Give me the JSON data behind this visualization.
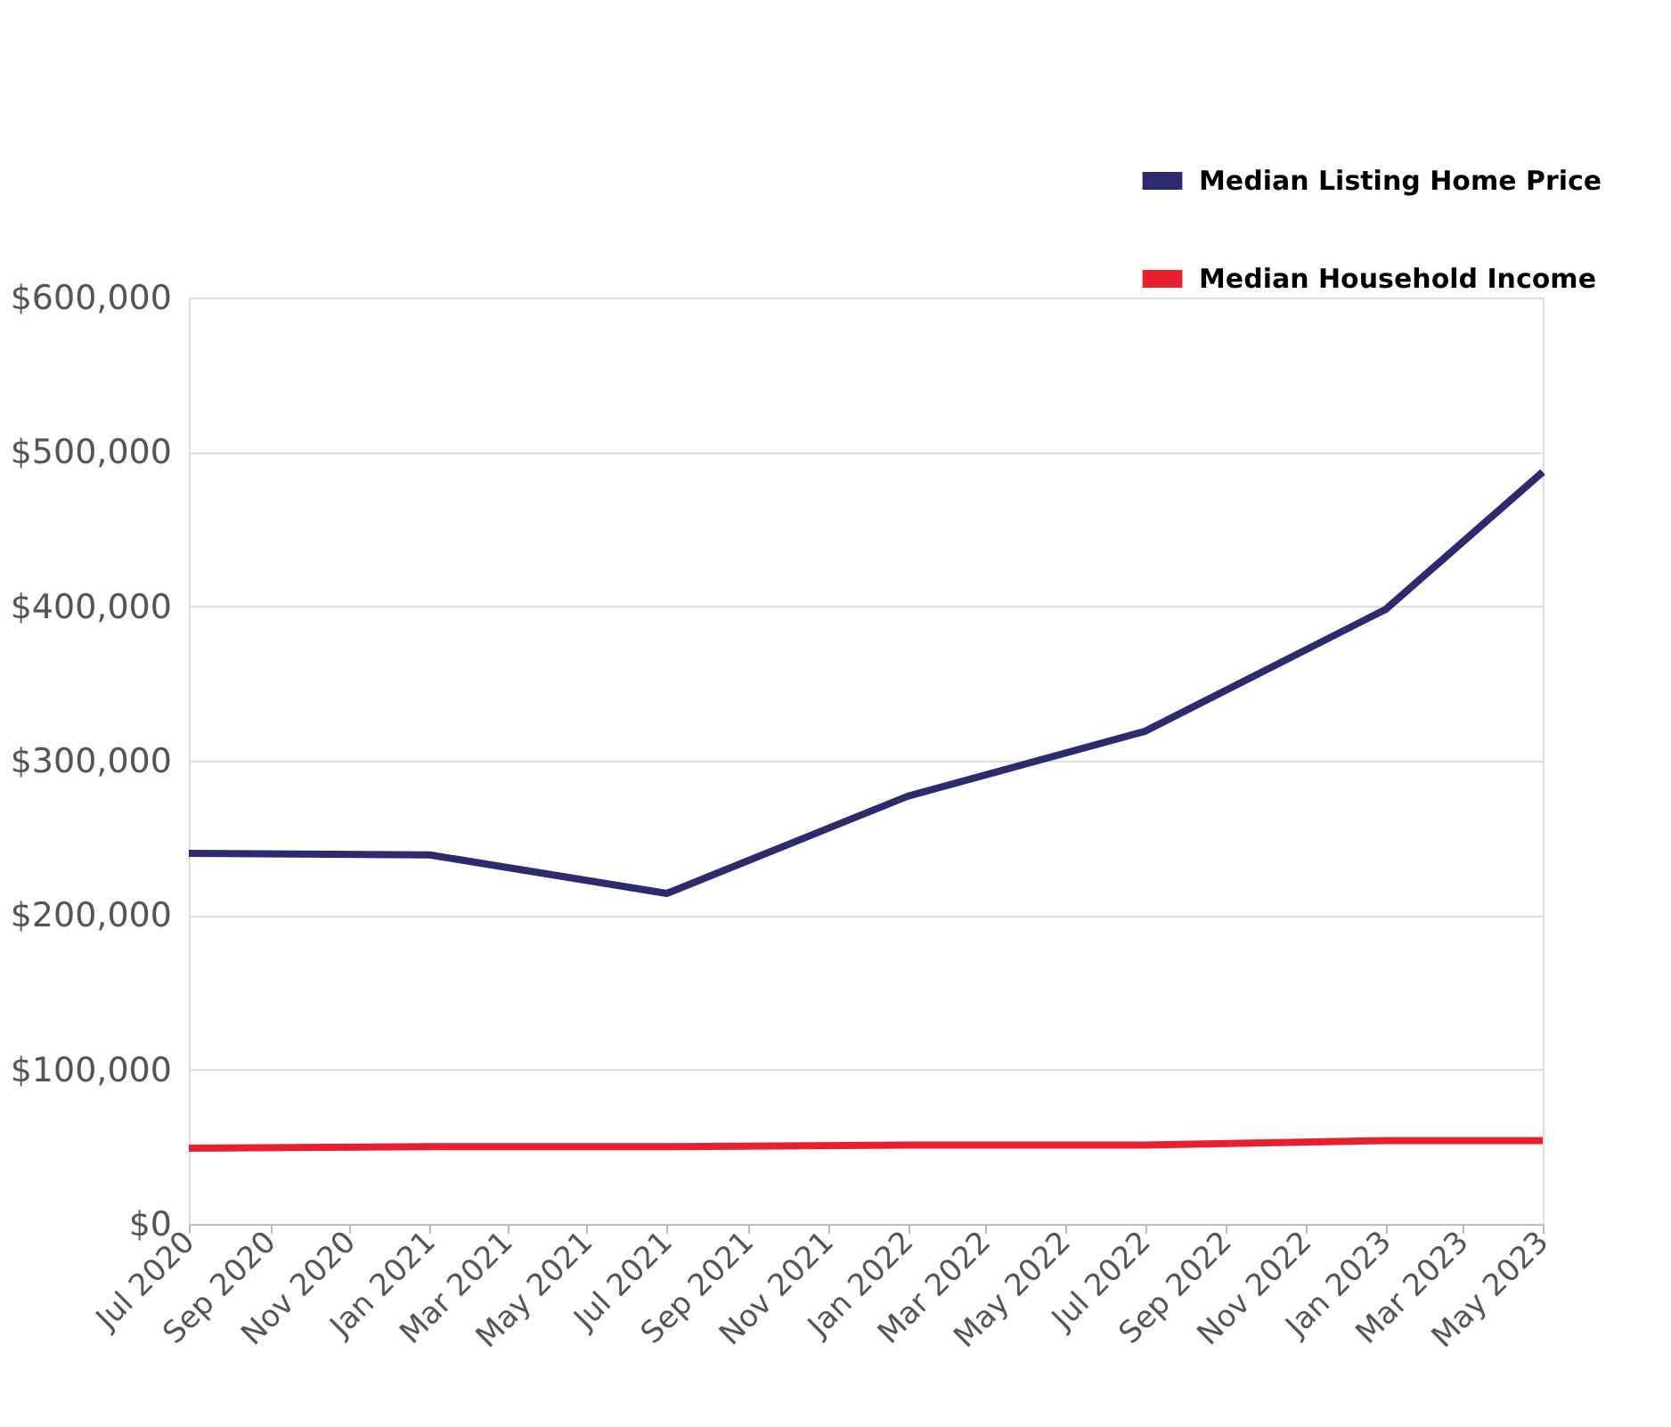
{
  "chart_data": {
    "type": "line",
    "x": [
      "2020-07",
      "2021-01",
      "2021-07",
      "2022-01",
      "2022-07",
      "2023-01",
      "2023-05"
    ],
    "series": [
      {
        "name": "Median Listing Home Price",
        "color": "#2e2a6e",
        "values": [
          240000,
          239000,
          214000,
          277000,
          319000,
          398000,
          487000
        ]
      },
      {
        "name": "Median Household Income",
        "color": "#e8202e",
        "values": [
          49000,
          50000,
          50000,
          51000,
          51000,
          54000,
          54000
        ]
      }
    ],
    "xlim": [
      "2020-07",
      "2023-05"
    ],
    "xticks": [
      {
        "value": "2020-07",
        "label": "Jul 2020"
      },
      {
        "value": "2020-09",
        "label": "Sep 2020"
      },
      {
        "value": "2020-11",
        "label": "Nov 2020"
      },
      {
        "value": "2021-01",
        "label": "Jan 2021"
      },
      {
        "value": "2021-03",
        "label": "Mar 2021"
      },
      {
        "value": "2021-05",
        "label": "May 2021"
      },
      {
        "value": "2021-07",
        "label": "Jul 2021"
      },
      {
        "value": "2021-09",
        "label": "Sep 2021"
      },
      {
        "value": "2021-11",
        "label": "Nov 2021"
      },
      {
        "value": "2022-01",
        "label": "Jan 2022"
      },
      {
        "value": "2022-03",
        "label": "Mar 2022"
      },
      {
        "value": "2022-05",
        "label": "May 2022"
      },
      {
        "value": "2022-07",
        "label": "Jul 2022"
      },
      {
        "value": "2022-09",
        "label": "Sep 2022"
      },
      {
        "value": "2022-11",
        "label": "Nov 2022"
      },
      {
        "value": "2023-01",
        "label": "Jan 2023"
      },
      {
        "value": "2023-03",
        "label": "Mar 2023"
      },
      {
        "value": "2023-05",
        "label": "May 2023"
      }
    ],
    "ylim": [
      0,
      600000
    ],
    "yticks": [
      {
        "value": 0,
        "label": "$0"
      },
      {
        "value": 100000,
        "label": "$100,000"
      },
      {
        "value": 200000,
        "label": "$200,000"
      },
      {
        "value": 300000,
        "label": "$300,000"
      },
      {
        "value": 400000,
        "label": "$400,000"
      },
      {
        "value": 500000,
        "label": "$500,000"
      },
      {
        "value": 600000,
        "label": "$600,000"
      }
    ],
    "grid": "y",
    "legend": "top right",
    "marker": "none",
    "line_style": "solid"
  }
}
